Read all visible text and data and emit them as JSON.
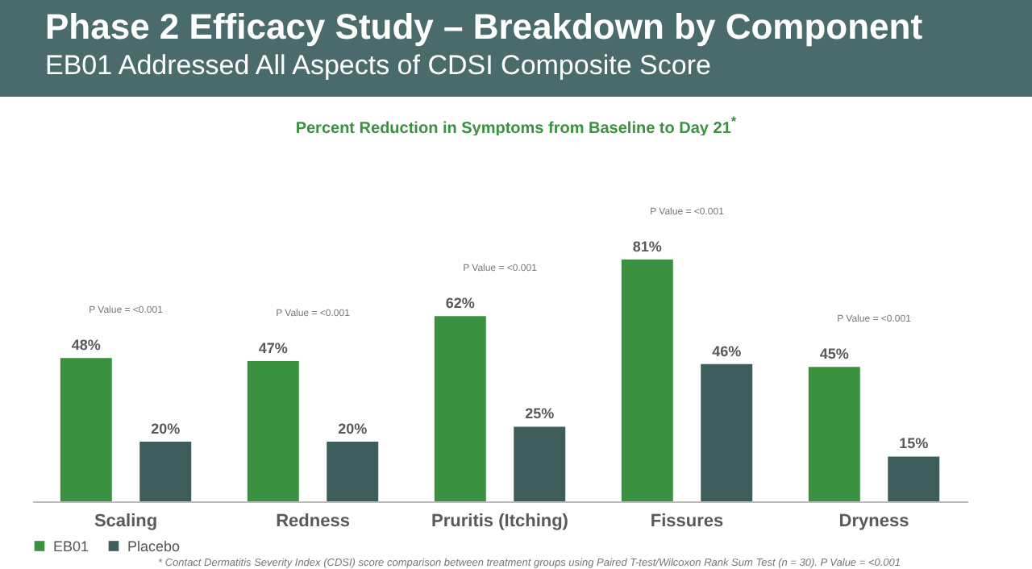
{
  "chart_data": {
    "type": "bar",
    "title": "Phase 2 Efficacy Study – Breakdown by Component",
    "subtitle": "EB01 Addressed All Aspects of CDSI Composite Score",
    "categories": [
      "Scaling",
      "Redness",
      "Pruritis (Itching)",
      "Fissures",
      "Dryness"
    ],
    "series": [
      {
        "name": "EB01",
        "color": "#3a913f",
        "values": [
          48,
          47,
          62,
          81,
          45
        ],
        "value_labels": [
          "48%",
          "47%",
          "62%",
          "81%",
          "45%"
        ]
      },
      {
        "name": "Placebo",
        "color": "#3e5e5e",
        "values": [
          20,
          20,
          25,
          46,
          15
        ],
        "value_labels": [
          "20%",
          "20%",
          "25%",
          "46%",
          "15%"
        ]
      }
    ],
    "legend": "bottom",
    "annotations": [
      "Percent Reduction in Symptoms from Baseline to Day 21$^{*}$",
      "P Value = <0.001",
      "P Value = <0.001",
      "P Value = <0.001",
      "P Value = <0.001",
      "P Value = <0.001",
      "* Contact Dermatitis Severity Index (CDSI) score comparison between treatment groups using Paired T-test/Wilcoxon Rank Sum Test (n = 30). P Value = <0.001"
    ]
  }
}
